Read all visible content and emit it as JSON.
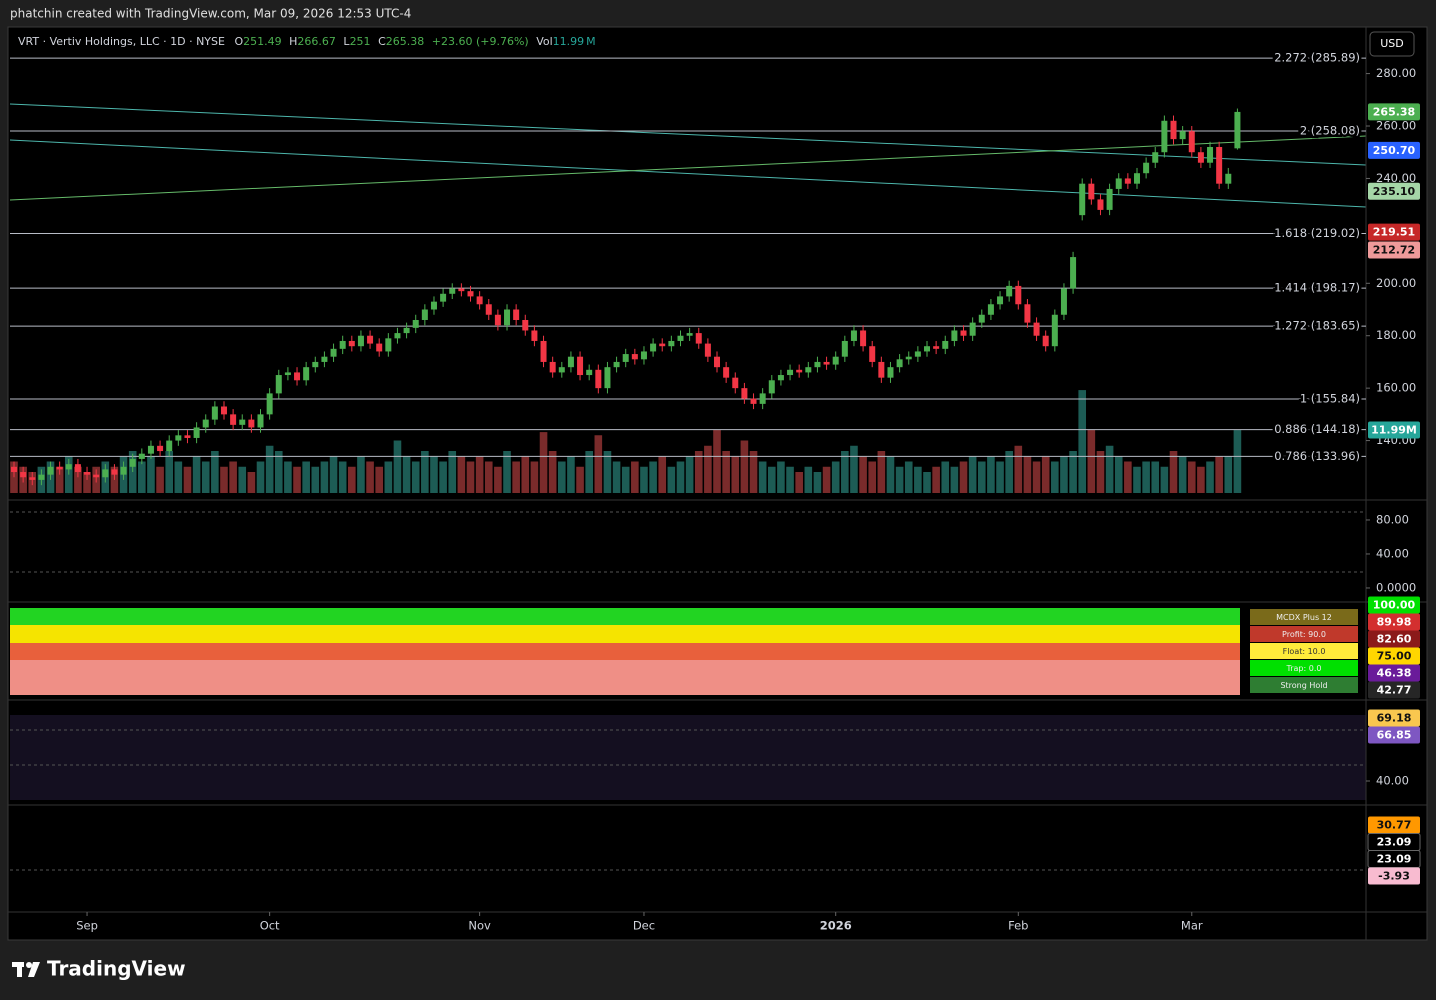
{
  "header": "phatchin created with TradingView.com, Mar 09, 2026 12:53 UTC-4",
  "footer": "TradingView",
  "currency": "USD",
  "chart_data": [
    {
      "type": "candlestick",
      "symbol": "VRT · Vertiv Holdings, LLC · 1D · NYSE",
      "ohlc_names": [
        "O",
        "H",
        "L",
        "C"
      ],
      "change": "+23.60 (+9.76%)",
      "volume_name": "Vol",
      "volume_unit": "M",
      "up_color": "#4caf50",
      "down_color": "#f23645",
      "volume_up_color": "#1d5c55",
      "volume_down_color": "#7a2b2b",
      "x_ticks": [
        {
          "value": 8,
          "label": "Sep"
        },
        {
          "value": 28,
          "label": "Oct"
        },
        {
          "value": 51,
          "label": "Nov"
        },
        {
          "value": 69,
          "label": "Dec"
        },
        {
          "value": 90,
          "label": "2026"
        },
        {
          "value": 110,
          "label": "Feb"
        },
        {
          "value": 129,
          "label": "Mar"
        }
      ],
      "ylim": [
        120,
        289
      ],
      "yticks": [
        {
          "value": 140,
          "label": "140.00"
        },
        {
          "value": 160,
          "label": "160.00"
        },
        {
          "value": 180,
          "label": "180.00"
        },
        {
          "value": 200,
          "label": "200.00"
        },
        {
          "value": 240,
          "label": "240.00"
        },
        {
          "value": 260,
          "label": "260.00"
        },
        {
          "value": 280,
          "label": "280.00"
        }
      ],
      "vlim": [
        0,
        40
      ],
      "open": [
        130,
        128,
        126,
        125,
        127,
        130,
        129,
        131,
        128,
        127,
        126,
        129,
        127,
        130,
        133,
        135,
        138,
        136,
        140,
        142,
        141,
        145,
        148,
        153,
        150,
        146,
        148,
        145,
        150,
        158,
        165,
        166,
        163,
        168,
        170,
        172,
        175,
        178,
        176,
        180,
        177,
        174,
        179,
        181,
        183,
        186,
        190,
        193,
        196,
        198,
        197,
        195,
        192,
        188,
        184,
        190,
        186,
        182,
        178,
        170,
        166,
        168,
        172,
        165,
        167,
        160,
        168,
        170,
        173,
        171,
        174,
        177,
        176,
        178,
        180,
        181,
        177,
        172,
        168,
        164,
        160,
        156,
        154,
        158,
        163,
        165,
        167,
        166,
        168,
        170,
        169,
        172,
        178,
        182,
        176,
        170,
        164,
        168,
        171,
        172,
        174,
        176,
        175,
        178,
        182,
        180,
        185,
        188,
        192,
        195,
        199,
        192,
        185,
        180,
        176,
        188,
        198,
        226,
        238,
        232,
        228,
        236,
        240,
        238,
        242,
        246,
        250,
        262,
        255,
        258,
        250,
        246,
        252,
        238,
        251.49
      ],
      "high": [
        132,
        130,
        128,
        129,
        132,
        132,
        133,
        133,
        130,
        129,
        131,
        131,
        132,
        135,
        137,
        140,
        140,
        142,
        144,
        144,
        147,
        150,
        155,
        155,
        152,
        150,
        150,
        152,
        160,
        167,
        168,
        168,
        170,
        172,
        174,
        177,
        180,
        180,
        182,
        182,
        179,
        181,
        183,
        185,
        188,
        192,
        195,
        198,
        200,
        200,
        199,
        197,
        194,
        190,
        192,
        192,
        188,
        184,
        180,
        172,
        170,
        174,
        174,
        169,
        169,
        170,
        172,
        175,
        175,
        176,
        179,
        179,
        180,
        182,
        183,
        183,
        179,
        174,
        170,
        166,
        162,
        158,
        160,
        165,
        167,
        169,
        169,
        170,
        172,
        172,
        174,
        180,
        184,
        184,
        178,
        172,
        170,
        173,
        174,
        176,
        178,
        178,
        180,
        184,
        184,
        187,
        190,
        194,
        197,
        201,
        201,
        194,
        187,
        182,
        190,
        200,
        212,
        240,
        240,
        234,
        238,
        242,
        242,
        244,
        248,
        252,
        264,
        264,
        260,
        260,
        252,
        254,
        254,
        244,
        266.67
      ],
      "low": [
        126,
        124,
        123,
        123,
        125,
        127,
        127,
        126,
        125,
        124,
        124,
        125,
        125,
        128,
        131,
        133,
        134,
        134,
        138,
        139,
        139,
        143,
        146,
        148,
        144,
        144,
        143,
        143,
        148,
        156,
        163,
        161,
        161,
        166,
        168,
        170,
        173,
        174,
        174,
        175,
        172,
        172,
        177,
        179,
        181,
        184,
        188,
        191,
        194,
        195,
        193,
        190,
        186,
        182,
        182,
        184,
        180,
        176,
        168,
        164,
        164,
        166,
        163,
        163,
        158,
        158,
        166,
        168,
        169,
        169,
        172,
        174,
        174,
        176,
        178,
        175,
        170,
        166,
        162,
        158,
        154,
        152,
        152,
        156,
        161,
        163,
        164,
        164,
        166,
        167,
        167,
        170,
        176,
        174,
        168,
        162,
        162,
        166,
        169,
        170,
        172,
        173,
        173,
        176,
        178,
        178,
        183,
        186,
        190,
        193,
        190,
        183,
        178,
        174,
        174,
        186,
        196,
        224,
        230,
        226,
        226,
        234,
        236,
        236,
        240,
        244,
        248,
        253,
        253,
        248,
        244,
        244,
        236,
        236,
        251.0
      ],
      "close": [
        128,
        126,
        125,
        127,
        130,
        129,
        131,
        128,
        127,
        126,
        129,
        127,
        130,
        133,
        135,
        138,
        136,
        140,
        142,
        141,
        145,
        148,
        153,
        150,
        146,
        148,
        145,
        150,
        158,
        165,
        166,
        163,
        168,
        170,
        172,
        175,
        178,
        176,
        180,
        177,
        174,
        179,
        181,
        183,
        186,
        190,
        193,
        196,
        198,
        197,
        195,
        192,
        188,
        184,
        190,
        186,
        182,
        178,
        170,
        166,
        168,
        172,
        165,
        167,
        160,
        168,
        170,
        173,
        171,
        174,
        177,
        176,
        178,
        180,
        181,
        177,
        172,
        168,
        164,
        160,
        156,
        154,
        158,
        163,
        165,
        167,
        166,
        168,
        170,
        169,
        172,
        178,
        182,
        176,
        170,
        164,
        168,
        171,
        172,
        174,
        176,
        175,
        178,
        182,
        180,
        185,
        188,
        192,
        195,
        199,
        192,
        185,
        180,
        176,
        188,
        198,
        210,
        238,
        232,
        228,
        236,
        240,
        238,
        242,
        246,
        250,
        262,
        255,
        258,
        250,
        246,
        252,
        238,
        241.78,
        265.38
      ],
      "volume": [
        6,
        5,
        4,
        5,
        6,
        5,
        7,
        5,
        4,
        5,
        6,
        5,
        7,
        8,
        6,
        7,
        5,
        8,
        6,
        5,
        7,
        6,
        8,
        5,
        6,
        5,
        4,
        6,
        9,
        8,
        6,
        5,
        6,
        5,
        6,
        7,
        6,
        5,
        7,
        6,
        5,
        6,
        10,
        7,
        6,
        8,
        7,
        6,
        8,
        7,
        6,
        7,
        6,
        5,
        8,
        6,
        7,
        6,
        11.6,
        8,
        6,
        7,
        5,
        8,
        11,
        8,
        6,
        5,
        6,
        5,
        6,
        7,
        5,
        6,
        7,
        8,
        9,
        12,
        8,
        7,
        10,
        8,
        6,
        5,
        6,
        5,
        4,
        5,
        4,
        5,
        6,
        8,
        9,
        7,
        6,
        8,
        7,
        5,
        6,
        5,
        4,
        5,
        6,
        5,
        6,
        7,
        6,
        7,
        6,
        8,
        9,
        7,
        6,
        7,
        6,
        7,
        8,
        19.6,
        12,
        8,
        9,
        7,
        6,
        5,
        6,
        6,
        5,
        8,
        7,
        6,
        5,
        6,
        7,
        7,
        11.99
      ],
      "fib_levels": [
        {
          "value": 285.89,
          "label": "2.272 (285.89)"
        },
        {
          "value": 258.08,
          "label": "2 (258.08)"
        },
        {
          "value": 219.02,
          "label": "1.618 (219.02)"
        },
        {
          "value": 198.17,
          "label": "1.414 (198.17)"
        },
        {
          "value": 183.65,
          "label": "1.272 (183.65)"
        },
        {
          "value": 155.84,
          "label": "1 (155.84)"
        },
        {
          "value": 144.18,
          "label": "0.886 (144.18)"
        },
        {
          "value": 133.96,
          "label": "0.786 (133.96)"
        }
      ],
      "price_tags": [
        {
          "value": 265.38,
          "color": "#4caf50"
        },
        {
          "value": 250.7,
          "label": "250.70",
          "color": "#2962ff"
        },
        {
          "value": 235.1,
          "label": "235.10",
          "color": "#a5d6a7"
        },
        {
          "value": 219.51,
          "color": "#c62828"
        },
        {
          "value": 212.72,
          "color": "#ef9a9a"
        }
      ],
      "volume_tags": [
        {
          "value": 11.99,
          "label": "11.99M",
          "color": "#26a69a"
        }
      ]
    },
    {
      "type": "indicator",
      "ylim": [
        -11.8,
        97.6
      ],
      "yticks": [
        {
          "value": 80,
          "label": "80.00"
        },
        {
          "value": 40,
          "label": "40.00"
        },
        {
          "value": 0,
          "label": "0.0000"
        }
      ]
    },
    {
      "type": "indicator",
      "ylim": [
        0,
        100
      ],
      "tags": [
        {
          "value": 100,
          "label": "100.00",
          "color": "#00e000"
        },
        {
          "value": 89.98,
          "color": "#d32f2f"
        },
        {
          "value": 82.6,
          "label": "82.60",
          "color": "#8b1a1a"
        },
        {
          "value": 75,
          "label": "75.00",
          "color": "#ffd600"
        },
        {
          "value": 46.38,
          "color": "#6a1b9a"
        },
        {
          "value": 42.77,
          "color": "#262626"
        }
      ],
      "legend": [
        {
          "label": "MCDX Plus 12",
          "color": "#7a6a1a"
        },
        {
          "label": "Profit: 90.0",
          "color": "#c0392b"
        },
        {
          "label": "Float: 10.0",
          "color": "#ffeb3b"
        },
        {
          "label": "Trap: 0.0",
          "color": "#00e000"
        },
        {
          "label": "Strong Hold",
          "color": "#2e7d32"
        }
      ]
    },
    {
      "type": "indicator",
      "ylim": [
        31.2,
        76.1
      ],
      "yticks": [
        {
          "value": 40,
          "label": "40.00"
        }
      ],
      "tags": [
        {
          "value": 69.18,
          "color": "#f9c74f"
        },
        {
          "value": 66.85,
          "color": "#7e57c2"
        }
      ]
    },
    {
      "type": "indicator",
      "ylim": [
        -27.4,
        42.4
      ],
      "tags": [
        {
          "value": 30.77,
          "color": "#ff9800"
        },
        {
          "value": 23.09,
          "color": "#000000"
        },
        {
          "value": 23.09,
          "color": "#000000"
        },
        {
          "value": -3.93,
          "color": "#f8bbd0"
        }
      ]
    }
  ]
}
